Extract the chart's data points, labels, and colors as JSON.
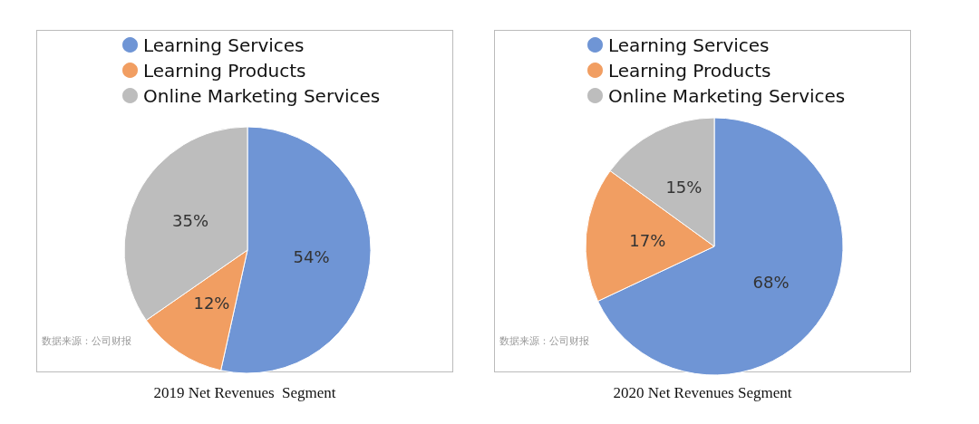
{
  "chart_data": [
    {
      "type": "pie",
      "title": "2019 Net Revenues  Segment",
      "categories": [
        "Learning Services",
        "Learning Products",
        "Online Marketing Services"
      ],
      "values": [
        54,
        12,
        35
      ],
      "value_labels": [
        "54%",
        "12%",
        "35%"
      ],
      "colors": [
        "#6f95d5",
        "#f19e62",
        "#bdbdbd"
      ],
      "legend": "top",
      "annotations": [
        "数据来源：公司财报"
      ]
    },
    {
      "type": "pie",
      "title": "2020 Net Revenues Segment",
      "categories": [
        "Learning Services",
        "Learning Products",
        "Online Marketing Services"
      ],
      "values": [
        68,
        17,
        15
      ],
      "value_labels": [
        "68%",
        "17%",
        "15%"
      ],
      "colors": [
        "#6f95d5",
        "#f19e62",
        "#bdbdbd"
      ],
      "legend": "top",
      "annotations": [
        "数据来源：公司财报"
      ]
    }
  ]
}
